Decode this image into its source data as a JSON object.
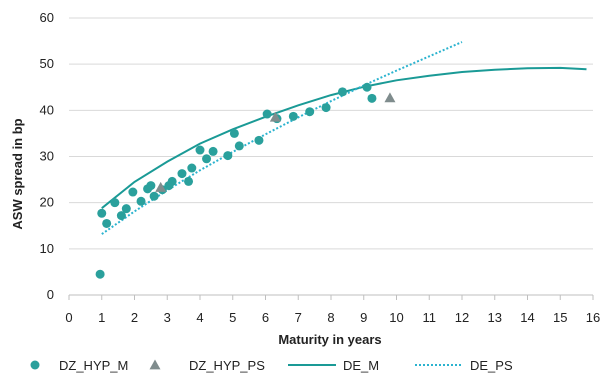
{
  "chart_data": {
    "type": "scatter",
    "xlabel": "Maturity in years",
    "ylabel": "ASW spread in bp",
    "xlim": [
      0,
      16
    ],
    "ylim": [
      0,
      60
    ],
    "x_ticks": [
      0,
      1,
      2,
      3,
      4,
      5,
      6,
      7,
      8,
      9,
      10,
      11,
      12,
      13,
      14,
      15,
      16
    ],
    "y_ticks": [
      0,
      10,
      20,
      30,
      40,
      50,
      60
    ],
    "grid": "horizontal",
    "legend_position": "bottom",
    "series": [
      {
        "name": "DZ_HYP_M",
        "kind": "points",
        "marker": "circle",
        "color": "#2aa09c",
        "points": [
          [
            0.95,
            4.5
          ],
          [
            1.0,
            17.7
          ],
          [
            1.15,
            15.5
          ],
          [
            1.4,
            20.0
          ],
          [
            1.6,
            17.2
          ],
          [
            1.75,
            18.7
          ],
          [
            1.95,
            22.3
          ],
          [
            2.2,
            20.3
          ],
          [
            2.4,
            23.0
          ],
          [
            2.5,
            23.7
          ],
          [
            2.6,
            21.4
          ],
          [
            2.85,
            22.8
          ],
          [
            3.05,
            23.7
          ],
          [
            3.15,
            24.6
          ],
          [
            3.45,
            26.3
          ],
          [
            3.65,
            24.6
          ],
          [
            3.75,
            27.5
          ],
          [
            4.0,
            31.4
          ],
          [
            4.2,
            29.5
          ],
          [
            4.4,
            31.1
          ],
          [
            4.85,
            30.2
          ],
          [
            5.05,
            35.0
          ],
          [
            5.2,
            32.3
          ],
          [
            5.8,
            33.5
          ],
          [
            6.05,
            39.2
          ],
          [
            6.35,
            38.2
          ],
          [
            6.85,
            38.7
          ],
          [
            7.35,
            39.7
          ],
          [
            7.85,
            40.6
          ],
          [
            8.35,
            44.0
          ],
          [
            9.1,
            45.0
          ],
          [
            9.25,
            42.6
          ]
        ]
      },
      {
        "name": "DZ_HYP_PS",
        "kind": "points",
        "marker": "triangle",
        "color": "#7f8c8d",
        "points": [
          [
            2.8,
            23.3
          ],
          [
            6.3,
            38.5
          ],
          [
            9.8,
            42.7
          ]
        ]
      },
      {
        "name": "DE_M",
        "kind": "line",
        "style": "solid",
        "color": "#1a9a96",
        "points": [
          [
            1.0,
            18.8
          ],
          [
            2.0,
            24.5
          ],
          [
            3.0,
            28.9
          ],
          [
            4.0,
            32.8
          ],
          [
            5.0,
            35.9
          ],
          [
            6.0,
            38.6
          ],
          [
            7.0,
            41.1
          ],
          [
            8.0,
            43.3
          ],
          [
            9.0,
            45.1
          ],
          [
            10.0,
            46.5
          ],
          [
            11.0,
            47.5
          ],
          [
            12.0,
            48.3
          ],
          [
            13.0,
            48.8
          ],
          [
            14.0,
            49.1
          ],
          [
            15.0,
            49.2
          ],
          [
            15.8,
            48.9
          ]
        ]
      },
      {
        "name": "DE_PS",
        "kind": "line",
        "style": "dotted",
        "color": "#2bb3cf",
        "points": [
          [
            1.0,
            13.2
          ],
          [
            2.0,
            18.1
          ],
          [
            3.0,
            22.7
          ],
          [
            4.0,
            27.0
          ],
          [
            5.0,
            31.0
          ],
          [
            6.0,
            34.8
          ],
          [
            7.0,
            38.5
          ],
          [
            8.0,
            42.0
          ],
          [
            9.0,
            45.4
          ],
          [
            10.0,
            48.6
          ],
          [
            11.0,
            51.7
          ],
          [
            12.0,
            54.8
          ]
        ]
      }
    ]
  }
}
